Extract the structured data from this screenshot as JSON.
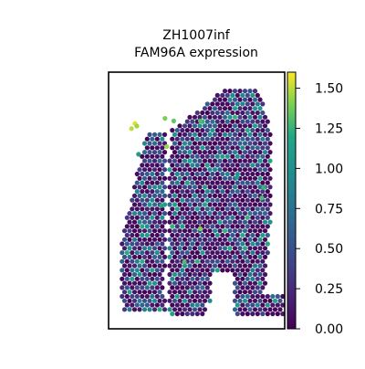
{
  "chart_data": {
    "type": "scatter",
    "title_lines": [
      "ZH1007inf",
      "FAM96A expression"
    ],
    "xlabel": "",
    "ylabel": "",
    "grid": false,
    "colormap": "viridis",
    "colorbar": {
      "min": 0.0,
      "max": 1.6,
      "ticks": [
        0.0,
        0.25,
        0.5,
        0.75,
        1.0,
        1.25,
        1.5
      ],
      "tick_labels": [
        "0.00",
        "0.25",
        "0.50",
        "0.75",
        "1.00",
        "1.25",
        "1.50"
      ]
    },
    "spot_grid": {
      "x_range": [
        0,
        1
      ],
      "y_range": [
        0,
        1
      ],
      "left_lobe": {
        "x_start": 0.08,
        "x_end": 0.42,
        "rows": [
          [
            0.66,
            0.34,
            0.42
          ],
          [
            0.68,
            0.32,
            0.42
          ],
          [
            0.7,
            0.3,
            0.42
          ],
          [
            0.72,
            0.27,
            0.41
          ],
          [
            0.74,
            0.24,
            0.41
          ],
          [
            0.76,
            0.21,
            0.4
          ],
          [
            0.78,
            0.18,
            0.4
          ],
          [
            0.8,
            0.16,
            0.39
          ],
          [
            0.82,
            0.14,
            0.39
          ],
          [
            0.84,
            0.13,
            0.38
          ],
          [
            0.86,
            0.12,
            0.38
          ],
          [
            0.88,
            0.11,
            0.37
          ],
          [
            0.9,
            0.1,
            0.36
          ],
          [
            0.92,
            0.09,
            0.36
          ],
          [
            0.94,
            0.09,
            0.35
          ],
          [
            0.96,
            0.08,
            0.35
          ],
          [
            0.98,
            0.08,
            0.36
          ],
          [
            1.0,
            0.08,
            0.36
          ],
          [
            1.02,
            0.09,
            0.37
          ],
          [
            1.04,
            0.1,
            0.36
          ]
        ]
      }
    },
    "series": [
      {
        "name": "",
        "spots": [
          {
            "x": 0.15,
            "y": 0.8,
            "value": 1.55
          },
          {
            "x": 0.13,
            "y": 0.78,
            "value": 1.5
          },
          {
            "x": 0.16,
            "y": 0.79,
            "value": 1.45
          },
          {
            "x": 0.32,
            "y": 0.82,
            "value": 1.4
          },
          {
            "x": 0.37,
            "y": 0.81,
            "value": 1.35
          },
          {
            "x": 0.33,
            "y": 0.71,
            "value": 1.45
          },
          {
            "x": 0.52,
            "y": 0.81,
            "value": 1.3
          },
          {
            "x": 0.43,
            "y": 0.26,
            "value": 1.3
          },
          {
            "x": 0.52,
            "y": 0.39,
            "value": 1.4
          },
          {
            "x": 0.87,
            "y": 0.51,
            "value": 1.3
          },
          {
            "x": 0.88,
            "y": 0.55,
            "value": 1.25
          },
          {
            "x": 0.3,
            "y": 0.48,
            "value": 1.2
          },
          {
            "x": 0.17,
            "y": 0.68,
            "value": 1.1
          },
          {
            "x": 0.73,
            "y": 0.59,
            "value": 1.1
          }
        ]
      }
    ]
  }
}
